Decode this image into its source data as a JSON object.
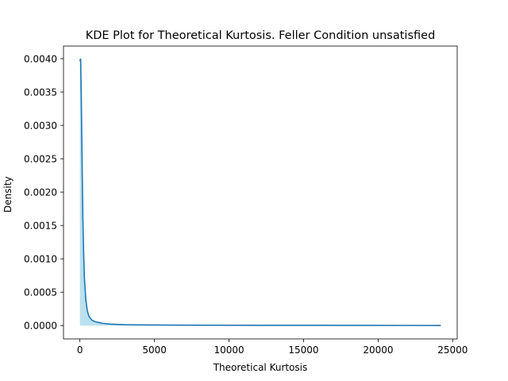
{
  "chart_data": {
    "type": "area",
    "title": "KDE Plot for Theoretical Kurtosis. Feller Condition unsatisfied",
    "xlabel": "Theoretical Kurtosis",
    "ylabel": "Density",
    "xlim": [
      -1100,
      25300
    ],
    "ylim": [
      -0.0002,
      0.00419
    ],
    "x_ticks": [
      0,
      5000,
      10000,
      15000,
      20000,
      25000
    ],
    "x_tick_labels": [
      "0",
      "5000",
      "10000",
      "15000",
      "20000",
      "25000"
    ],
    "y_ticks": [
      0.0,
      0.0005,
      0.001,
      0.0015,
      0.002,
      0.0025,
      0.003,
      0.0035,
      0.004
    ],
    "y_tick_labels": [
      "0.0000",
      "0.0005",
      "0.0010",
      "0.0015",
      "0.0020",
      "0.0025",
      "0.0030",
      "0.0035",
      "0.0040"
    ],
    "grid": false,
    "series": [
      {
        "line_color": "#1f77b4",
        "fill_color": "#aad8ea",
        "points": [
          [
            0,
            0.00396
          ],
          [
            50,
            0.004
          ],
          [
            100,
            0.0033
          ],
          [
            150,
            0.0024
          ],
          [
            200,
            0.0016
          ],
          [
            250,
            0.0011
          ],
          [
            300,
            0.00072
          ],
          [
            400,
            0.00038
          ],
          [
            500,
            0.00022
          ],
          [
            600,
            0.00014
          ],
          [
            800,
            8.2e-05
          ],
          [
            1000,
            6e-05
          ],
          [
            1500,
            3.5e-05
          ],
          [
            2000,
            2.2e-05
          ],
          [
            3000,
            1.3e-05
          ],
          [
            4000,
            1e-05
          ],
          [
            6000,
            7e-06
          ],
          [
            8000,
            6e-06
          ],
          [
            12000,
            5e-06
          ],
          [
            16000,
            4e-06
          ],
          [
            20000,
            3e-06
          ],
          [
            24200,
            1e-06
          ]
        ]
      }
    ]
  }
}
